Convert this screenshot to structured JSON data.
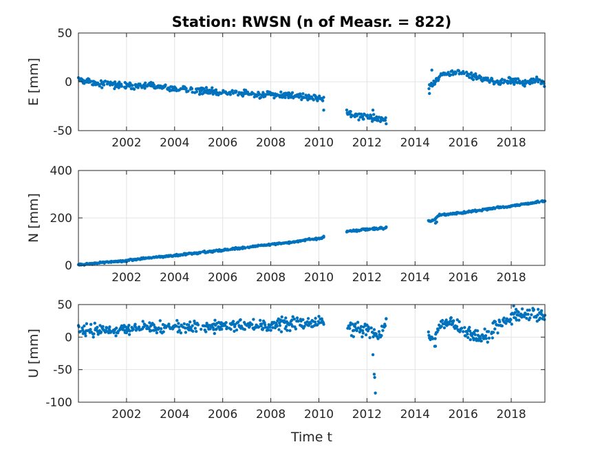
{
  "chart_data": {
    "type": "scatter",
    "title": "Station: RWSN (n of Measr. = 822)",
    "xlabel": "Time t",
    "color": "#0072BD",
    "grid": true,
    "xlim": [
      2000.0,
      2019.4
    ],
    "xticks": [
      2002,
      2004,
      2006,
      2008,
      2010,
      2012,
      2014,
      2016,
      2018
    ],
    "subplots": [
      {
        "ylabel": "E [mm]",
        "ylim": [
          -50,
          50
        ],
        "yticks": [
          -50,
          0,
          50
        ],
        "anchors": [
          [
            2000.0,
            2
          ],
          [
            2001.0,
            -2
          ],
          [
            2002.0,
            -4
          ],
          [
            2003.0,
            -4
          ],
          [
            2004.0,
            -7
          ],
          [
            2005.0,
            -9
          ],
          [
            2006.0,
            -11
          ],
          [
            2007.0,
            -12
          ],
          [
            2008.0,
            -14
          ],
          [
            2009.0,
            -14
          ],
          [
            2010.1,
            -17
          ],
          [
            2011.2,
            -32
          ],
          [
            2011.6,
            -35
          ],
          [
            2012.0,
            -36
          ],
          [
            2012.4,
            -37
          ],
          [
            2012.7,
            -38
          ],
          [
            2014.55,
            -5
          ],
          [
            2014.8,
            0
          ],
          [
            2015.0,
            5
          ],
          [
            2015.3,
            8
          ],
          [
            2015.7,
            10
          ],
          [
            2016.0,
            9
          ],
          [
            2016.5,
            5
          ],
          [
            2017.0,
            2
          ],
          [
            2017.5,
            0
          ],
          [
            2018.0,
            2
          ],
          [
            2018.5,
            -2
          ],
          [
            2019.0,
            2
          ],
          [
            2019.4,
            -2
          ]
        ],
        "noise": 2.0,
        "outliers": [
          [
            2010.2,
            -29
          ],
          [
            2012.25,
            -29
          ],
          [
            2012.8,
            -43
          ],
          [
            2014.6,
            -12
          ],
          [
            2014.7,
            12
          ]
        ]
      },
      {
        "ylabel": "N [mm]",
        "ylim": [
          0,
          400
        ],
        "yticks": [
          0,
          200,
          400
        ],
        "anchors": [
          [
            2000.0,
            2
          ],
          [
            2001.0,
            12
          ],
          [
            2002.0,
            20
          ],
          [
            2003.0,
            32
          ],
          [
            2004.0,
            42
          ],
          [
            2005.0,
            54
          ],
          [
            2006.0,
            64
          ],
          [
            2007.0,
            76
          ],
          [
            2008.0,
            88
          ],
          [
            2009.0,
            100
          ],
          [
            2010.1,
            115
          ],
          [
            2011.2,
            143
          ],
          [
            2012.0,
            152
          ],
          [
            2012.7,
            157
          ],
          [
            2014.55,
            188
          ],
          [
            2014.8,
            190
          ],
          [
            2015.0,
            212
          ],
          [
            2016.0,
            222
          ],
          [
            2017.0,
            238
          ],
          [
            2018.0,
            250
          ],
          [
            2019.4,
            272
          ]
        ],
        "noise": 2.5,
        "outliers": [
          [
            2010.2,
            123
          ],
          [
            2014.85,
            178
          ],
          [
            2014.9,
            183
          ],
          [
            2012.8,
            162
          ]
        ]
      },
      {
        "ylabel": "U [mm]",
        "ylim": [
          -100,
          50
        ],
        "yticks": [
          -100,
          -50,
          0,
          50
        ],
        "anchors": [
          [
            2000.0,
            10
          ],
          [
            2001.0,
            12
          ],
          [
            2002.0,
            14
          ],
          [
            2003.0,
            14
          ],
          [
            2004.0,
            15
          ],
          [
            2005.0,
            16
          ],
          [
            2006.0,
            17
          ],
          [
            2007.0,
            18
          ],
          [
            2008.0,
            19
          ],
          [
            2009.0,
            20
          ],
          [
            2010.1,
            24
          ],
          [
            2011.2,
            14
          ],
          [
            2012.0,
            10
          ],
          [
            2012.5,
            4
          ],
          [
            2012.8,
            20
          ],
          [
            2014.55,
            5
          ],
          [
            2014.8,
            -10
          ],
          [
            2015.0,
            20
          ],
          [
            2015.5,
            25
          ],
          [
            2016.0,
            10
          ],
          [
            2016.5,
            3
          ],
          [
            2017.0,
            0
          ],
          [
            2017.5,
            20
          ],
          [
            2018.0,
            30
          ],
          [
            2018.5,
            35
          ],
          [
            2019.0,
            33
          ],
          [
            2019.4,
            30
          ]
        ],
        "noise": 6.0,
        "outliers": [
          [
            2012.25,
            -27
          ],
          [
            2012.3,
            -57
          ],
          [
            2012.32,
            -62
          ],
          [
            2012.35,
            -86
          ],
          [
            2012.8,
            28
          ],
          [
            2014.85,
            -14
          ],
          [
            2018.1,
            48
          ]
        ]
      }
    ]
  }
}
